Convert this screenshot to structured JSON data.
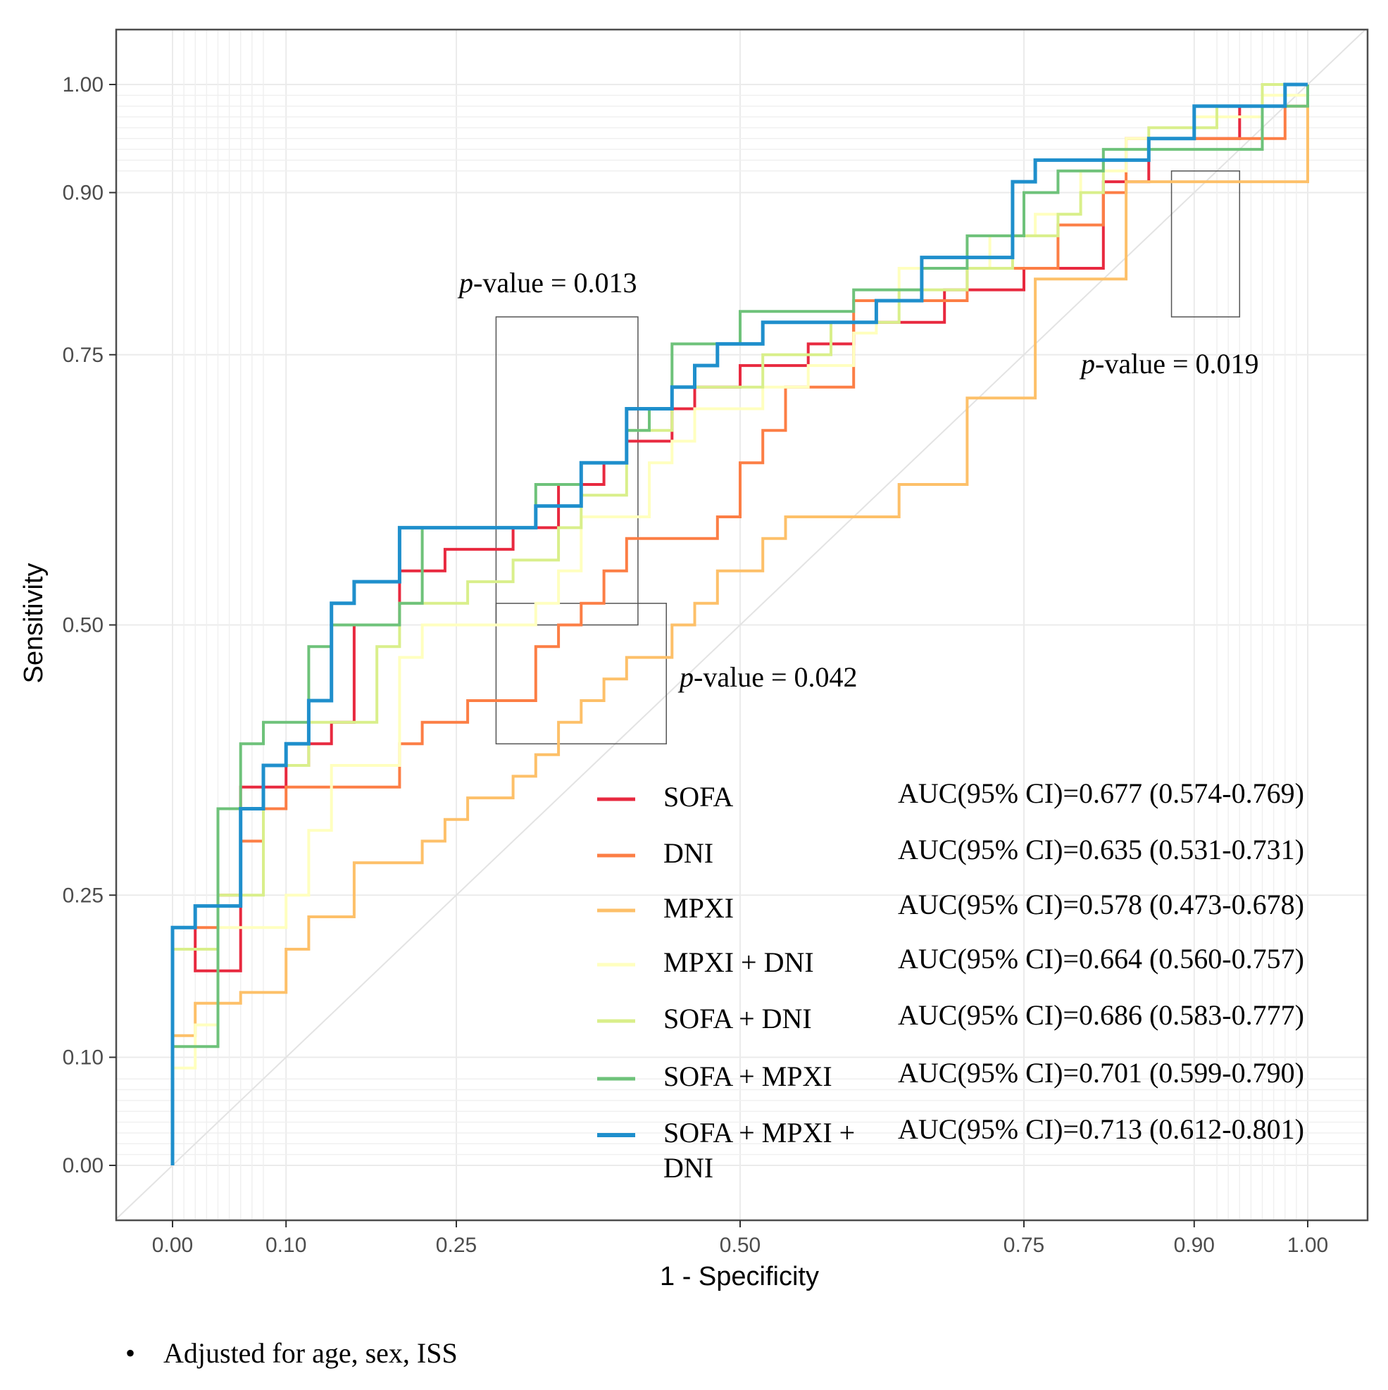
{
  "chart_data": {
    "type": "line",
    "title": "",
    "xlabel": "1 - Specificity",
    "ylabel": "Sensitivity",
    "xlim": [
      -0.05,
      1.05
    ],
    "ylim": [
      -0.05,
      1.05
    ],
    "x_ticks": [
      0.0,
      0.1,
      0.25,
      0.5,
      0.75,
      0.9,
      1.0
    ],
    "x_tick_labels": [
      "0.00",
      "0.10",
      "0.25",
      "0.50",
      "0.75",
      "0.90",
      "1.00"
    ],
    "y_ticks": [
      0.0,
      0.1,
      0.25,
      0.5,
      0.75,
      0.9,
      1.0
    ],
    "y_tick_labels": [
      "0.00",
      "0.10",
      "0.25",
      "0.50",
      "0.75",
      "0.90",
      "1.00"
    ],
    "grid": true,
    "reference_line": "diagonal",
    "series": [
      {
        "name": "SOFA",
        "color": "#e8293f",
        "auc_label": "AUC(95% CI)=0.677 (0.574-0.769)",
        "x": [
          0,
          0,
          0.02,
          0.02,
          0.06,
          0.06,
          0.1,
          0.1,
          0.12,
          0.12,
          0.14,
          0.14,
          0.16,
          0.16,
          0.2,
          0.2,
          0.24,
          0.24,
          0.3,
          0.3,
          0.34,
          0.34,
          0.38,
          0.38,
          0.4,
          0.4,
          0.44,
          0.44,
          0.46,
          0.46,
          0.5,
          0.5,
          0.56,
          0.56,
          0.6,
          0.6,
          0.68,
          0.68,
          0.75,
          0.75,
          0.82,
          0.82,
          0.86,
          0.86,
          0.94,
          0.94,
          0.98,
          0.98,
          1.0,
          1.0
        ],
        "y": [
          0,
          0.22,
          0.22,
          0.18,
          0.18,
          0.35,
          0.35,
          0.37,
          0.37,
          0.39,
          0.39,
          0.41,
          0.41,
          0.5,
          0.5,
          0.55,
          0.55,
          0.57,
          0.57,
          0.59,
          0.59,
          0.63,
          0.63,
          0.65,
          0.65,
          0.67,
          0.67,
          0.7,
          0.7,
          0.72,
          0.72,
          0.74,
          0.74,
          0.76,
          0.76,
          0.78,
          0.78,
          0.81,
          0.81,
          0.83,
          0.83,
          0.91,
          0.91,
          0.95,
          0.95,
          0.98,
          0.98,
          1.0,
          1.0,
          1.0
        ]
      },
      {
        "name": "DNI",
        "color": "#fc7e45",
        "auc_label": "AUC(95% CI)=0.635 (0.531-0.731)",
        "x": [
          0,
          0,
          0.04,
          0.04,
          0.06,
          0.06,
          0.08,
          0.08,
          0.1,
          0.1,
          0.2,
          0.2,
          0.22,
          0.22,
          0.26,
          0.26,
          0.32,
          0.32,
          0.34,
          0.34,
          0.36,
          0.36,
          0.38,
          0.38,
          0.4,
          0.4,
          0.48,
          0.48,
          0.5,
          0.5,
          0.52,
          0.52,
          0.54,
          0.54,
          0.6,
          0.6,
          0.7,
          0.7,
          0.78,
          0.78,
          0.82,
          0.82,
          0.84,
          0.84,
          0.98,
          0.98,
          1.0,
          1.0
        ],
        "y": [
          0,
          0.22,
          0.22,
          0.25,
          0.25,
          0.3,
          0.3,
          0.33,
          0.33,
          0.35,
          0.35,
          0.39,
          0.39,
          0.41,
          0.41,
          0.43,
          0.43,
          0.48,
          0.48,
          0.5,
          0.5,
          0.52,
          0.52,
          0.55,
          0.55,
          0.58,
          0.58,
          0.6,
          0.6,
          0.65,
          0.65,
          0.68,
          0.68,
          0.72,
          0.72,
          0.8,
          0.8,
          0.83,
          0.83,
          0.87,
          0.87,
          0.9,
          0.9,
          0.95,
          0.95,
          0.98,
          0.98,
          1.0
        ]
      },
      {
        "name": "MPXI",
        "color": "#fdc069",
        "auc_label": "AUC(95% CI)=0.578 (0.473-0.678)",
        "x": [
          0,
          0,
          0.02,
          0.02,
          0.06,
          0.06,
          0.1,
          0.1,
          0.12,
          0.12,
          0.16,
          0.16,
          0.22,
          0.22,
          0.24,
          0.24,
          0.26,
          0.26,
          0.3,
          0.3,
          0.32,
          0.32,
          0.34,
          0.34,
          0.36,
          0.36,
          0.38,
          0.38,
          0.4,
          0.4,
          0.44,
          0.44,
          0.46,
          0.46,
          0.48,
          0.48,
          0.52,
          0.52,
          0.54,
          0.54,
          0.64,
          0.64,
          0.7,
          0.7,
          0.76,
          0.76,
          0.84,
          0.84,
          1.0,
          1.0
        ],
        "y": [
          0,
          0.12,
          0.12,
          0.15,
          0.15,
          0.16,
          0.16,
          0.2,
          0.2,
          0.23,
          0.23,
          0.28,
          0.28,
          0.3,
          0.3,
          0.32,
          0.32,
          0.34,
          0.34,
          0.36,
          0.36,
          0.38,
          0.38,
          0.41,
          0.41,
          0.43,
          0.43,
          0.45,
          0.45,
          0.47,
          0.47,
          0.5,
          0.5,
          0.52,
          0.52,
          0.55,
          0.55,
          0.58,
          0.58,
          0.6,
          0.6,
          0.63,
          0.63,
          0.71,
          0.71,
          0.82,
          0.82,
          0.91,
          0.91,
          1.0
        ]
      },
      {
        "name": "MPXI + DNI",
        "color": "#ffffbf",
        "auc_label": "AUC(95% CI)=0.664 (0.560-0.757)",
        "x": [
          0,
          0,
          0.02,
          0.02,
          0.04,
          0.04,
          0.1,
          0.1,
          0.12,
          0.12,
          0.14,
          0.14,
          0.2,
          0.2,
          0.22,
          0.22,
          0.32,
          0.32,
          0.34,
          0.34,
          0.36,
          0.36,
          0.42,
          0.42,
          0.44,
          0.44,
          0.46,
          0.46,
          0.52,
          0.52,
          0.56,
          0.56,
          0.6,
          0.6,
          0.62,
          0.62,
          0.64,
          0.64,
          0.72,
          0.72,
          0.76,
          0.76,
          0.8,
          0.8,
          0.84,
          0.84,
          0.9,
          0.9,
          0.96,
          0.96,
          1.0,
          1.0
        ],
        "y": [
          0,
          0.09,
          0.09,
          0.13,
          0.13,
          0.22,
          0.22,
          0.25,
          0.25,
          0.31,
          0.31,
          0.37,
          0.37,
          0.47,
          0.47,
          0.5,
          0.5,
          0.52,
          0.52,
          0.55,
          0.55,
          0.6,
          0.6,
          0.65,
          0.65,
          0.67,
          0.67,
          0.7,
          0.7,
          0.72,
          0.72,
          0.74,
          0.74,
          0.77,
          0.77,
          0.8,
          0.8,
          0.83,
          0.83,
          0.86,
          0.86,
          0.88,
          0.88,
          0.92,
          0.92,
          0.95,
          0.95,
          0.97,
          0.97,
          0.99,
          0.99,
          1.0
        ]
      },
      {
        "name": "SOFA + DNI",
        "color": "#d9ef8b",
        "auc_label": "AUC(95% CI)=0.686 (0.583-0.777)",
        "x": [
          0,
          0,
          0.04,
          0.04,
          0.08,
          0.08,
          0.12,
          0.12,
          0.18,
          0.18,
          0.2,
          0.2,
          0.26,
          0.26,
          0.3,
          0.3,
          0.34,
          0.34,
          0.36,
          0.36,
          0.4,
          0.4,
          0.44,
          0.44,
          0.52,
          0.52,
          0.58,
          0.58,
          0.64,
          0.64,
          0.7,
          0.7,
          0.74,
          0.74,
          0.78,
          0.78,
          0.8,
          0.8,
          0.82,
          0.82,
          0.86,
          0.86,
          0.92,
          0.92,
          0.96,
          0.96,
          1.0,
          1.0
        ],
        "y": [
          0,
          0.2,
          0.2,
          0.25,
          0.25,
          0.37,
          0.37,
          0.41,
          0.41,
          0.48,
          0.48,
          0.52,
          0.52,
          0.54,
          0.54,
          0.56,
          0.56,
          0.59,
          0.59,
          0.62,
          0.62,
          0.68,
          0.68,
          0.72,
          0.72,
          0.75,
          0.75,
          0.78,
          0.78,
          0.81,
          0.81,
          0.83,
          0.83,
          0.86,
          0.86,
          0.88,
          0.88,
          0.9,
          0.9,
          0.93,
          0.93,
          0.96,
          0.96,
          0.98,
          0.98,
          1.0,
          1.0,
          1.0
        ]
      },
      {
        "name": "SOFA + MPXI",
        "color": "#6ec27a",
        "auc_label": "AUC(95% CI)=0.701 (0.599-0.790)",
        "x": [
          0,
          0,
          0.04,
          0.04,
          0.06,
          0.06,
          0.08,
          0.08,
          0.12,
          0.12,
          0.14,
          0.14,
          0.2,
          0.2,
          0.22,
          0.22,
          0.32,
          0.32,
          0.36,
          0.36,
          0.4,
          0.4,
          0.42,
          0.42,
          0.44,
          0.44,
          0.5,
          0.5,
          0.6,
          0.6,
          0.66,
          0.66,
          0.7,
          0.7,
          0.75,
          0.75,
          0.78,
          0.78,
          0.82,
          0.82,
          0.96,
          0.96,
          1.0,
          1.0
        ],
        "y": [
          0,
          0.11,
          0.11,
          0.33,
          0.33,
          0.39,
          0.39,
          0.41,
          0.41,
          0.48,
          0.48,
          0.5,
          0.5,
          0.52,
          0.52,
          0.59,
          0.59,
          0.63,
          0.63,
          0.65,
          0.65,
          0.68,
          0.68,
          0.7,
          0.7,
          0.76,
          0.76,
          0.79,
          0.79,
          0.81,
          0.81,
          0.83,
          0.83,
          0.86,
          0.86,
          0.9,
          0.9,
          0.92,
          0.92,
          0.94,
          0.94,
          0.98,
          0.98,
          1.0
        ]
      },
      {
        "name": "SOFA + MPXI + DNI",
        "color": "#1f8fcc",
        "auc_label": "AUC(95% CI)=0.713 (0.612-0.801)",
        "x": [
          0,
          0,
          0.02,
          0.02,
          0.06,
          0.06,
          0.08,
          0.08,
          0.1,
          0.1,
          0.12,
          0.12,
          0.14,
          0.14,
          0.16,
          0.16,
          0.2,
          0.2,
          0.32,
          0.32,
          0.36,
          0.36,
          0.4,
          0.4,
          0.44,
          0.44,
          0.46,
          0.46,
          0.48,
          0.48,
          0.52,
          0.52,
          0.62,
          0.62,
          0.66,
          0.66,
          0.74,
          0.74,
          0.76,
          0.76,
          0.86,
          0.86,
          0.9,
          0.9,
          0.98,
          0.98,
          1.0,
          1.0
        ],
        "y": [
          0,
          0.22,
          0.22,
          0.24,
          0.24,
          0.33,
          0.33,
          0.37,
          0.37,
          0.39,
          0.39,
          0.43,
          0.43,
          0.52,
          0.52,
          0.54,
          0.54,
          0.59,
          0.59,
          0.61,
          0.61,
          0.65,
          0.65,
          0.7,
          0.7,
          0.72,
          0.72,
          0.74,
          0.74,
          0.76,
          0.76,
          0.78,
          0.78,
          0.8,
          0.8,
          0.84,
          0.84,
          0.91,
          0.91,
          0.93,
          0.93,
          0.95,
          0.95,
          0.98,
          0.98,
          1.0,
          1.0,
          1.0
        ]
      }
    ],
    "annotations": [
      {
        "id": "p013",
        "prefix": "p",
        "text": "-value = 0.013",
        "box_x": [
          0.285,
          0.41
        ],
        "box_y": [
          0.5,
          0.785
        ]
      },
      {
        "id": "p019",
        "prefix": "p",
        "text": "-value = 0.019",
        "box_x": [
          0.88,
          0.94
        ],
        "box_y": [
          0.785,
          0.92
        ]
      },
      {
        "id": "p042",
        "prefix": "p",
        "text": "-value = 0.042",
        "box_x": [
          0.285,
          0.435
        ],
        "box_y": [
          0.39,
          0.52
        ]
      }
    ],
    "footnote_bullet": "•",
    "footnote": "Adjusted for age, sex, ISS"
  }
}
